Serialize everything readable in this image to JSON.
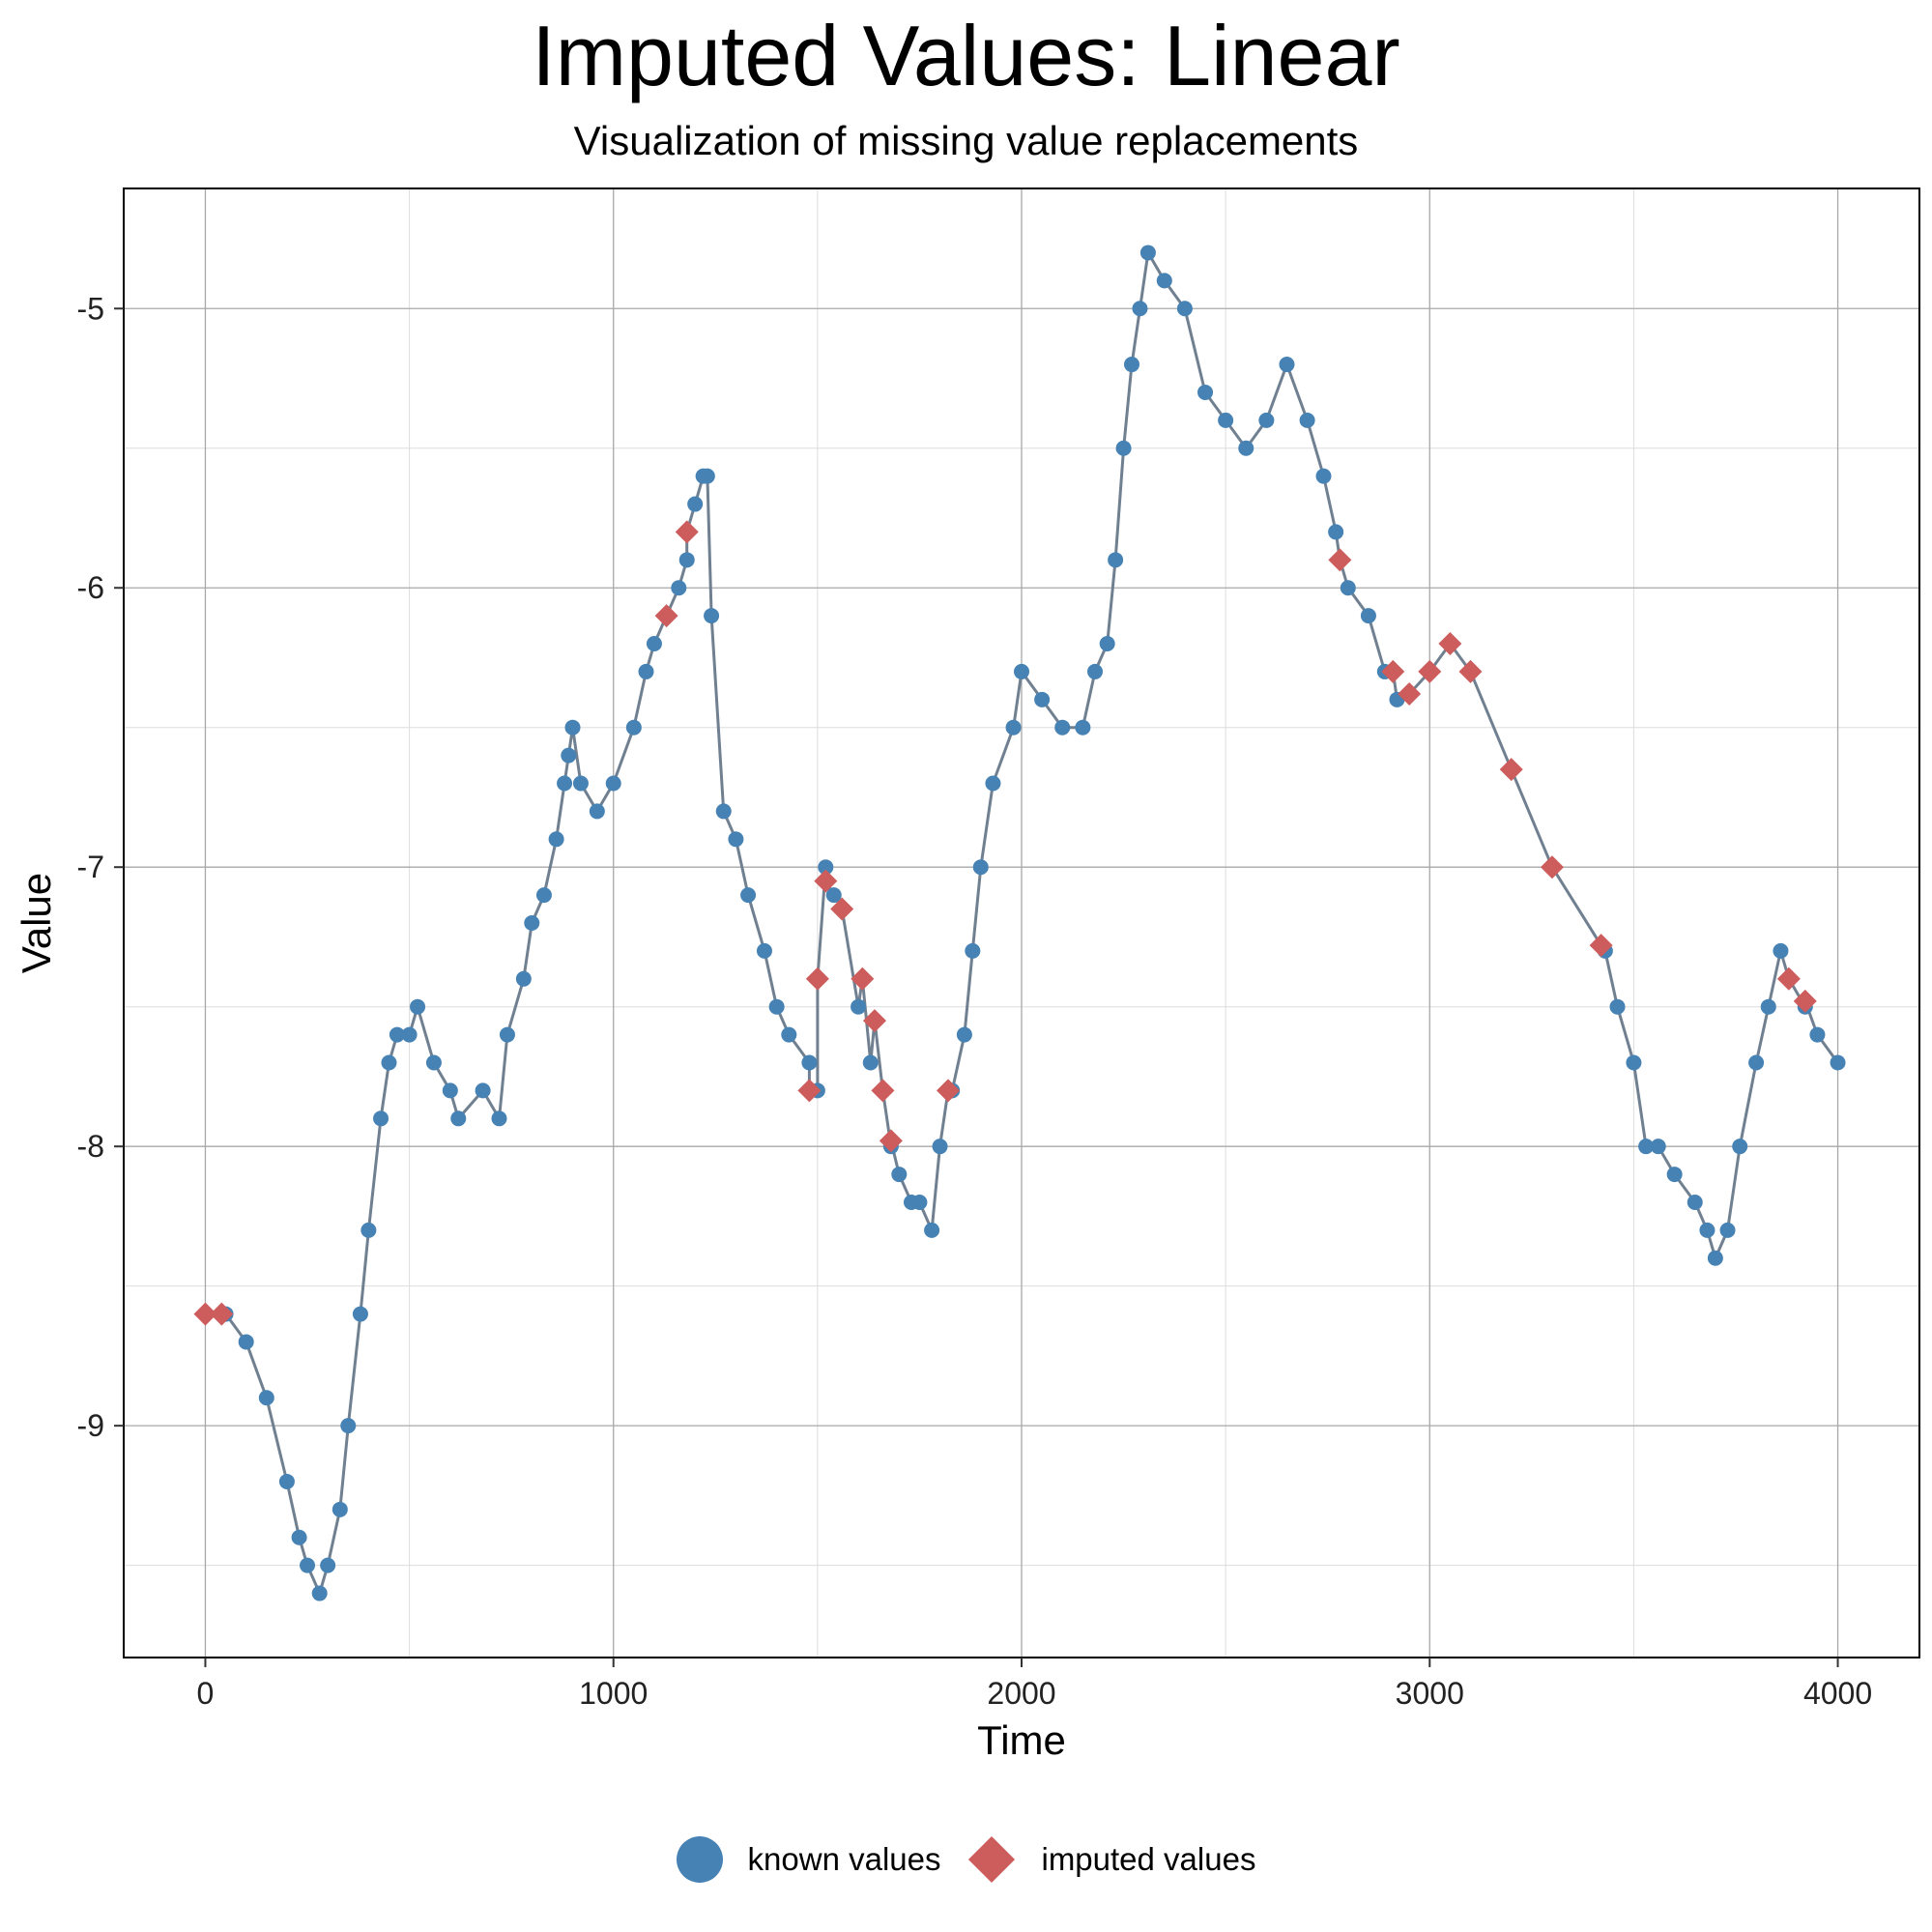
{
  "chart_data": {
    "type": "scatter",
    "title": "Imputed Values: Linear",
    "subtitle": "Visualization of missing value replacements",
    "xlabel": "Time",
    "ylabel": "Value",
    "xlim": [
      -200,
      4200
    ],
    "ylim": [
      -9.83,
      -4.57
    ],
    "x_ticks": [
      0,
      1000,
      2000,
      3000,
      4000
    ],
    "y_ticks": [
      -9,
      -8,
      -7,
      -6,
      -5
    ],
    "x_tick_labels": [
      "0",
      "1000",
      "2000",
      "3000",
      "4000"
    ],
    "y_tick_labels": [
      "-9",
      "-8",
      "-7",
      "-6",
      "-5"
    ],
    "grid": true,
    "legend_position": "bottom",
    "colors": {
      "known": "#4682b4",
      "imputed": "#cd5c5c",
      "line": "#708090"
    },
    "series": [
      {
        "name": "known values",
        "marker": "circle",
        "x": [
          50,
          100,
          150,
          200,
          230,
          250,
          280,
          300,
          330,
          350,
          380,
          400,
          430,
          450,
          470,
          500,
          520,
          560,
          600,
          620,
          680,
          720,
          740,
          780,
          800,
          830,
          860,
          880,
          890,
          900,
          920,
          960,
          1000,
          1050,
          1080,
          1100,
          1130,
          1160,
          1180,
          1200,
          1220,
          1230,
          1240,
          1270,
          1300,
          1330,
          1370,
          1400,
          1430,
          1480,
          1500,
          1520,
          1540,
          1600,
          1630,
          1680,
          1700,
          1730,
          1750,
          1780,
          1800,
          1830,
          1860,
          1880,
          1900,
          1930,
          1980,
          2000,
          2050,
          2100,
          2150,
          2180,
          2210,
          2230,
          2250,
          2270,
          2290,
          2310,
          2350,
          2400,
          2450,
          2500,
          2550,
          2600,
          2650,
          2700,
          2740,
          2770,
          2800,
          2850,
          2890,
          2920,
          3430,
          3460,
          3500,
          3530,
          3560,
          3600,
          3650,
          3680,
          3700,
          3730,
          3760,
          3800,
          3830,
          3860,
          3920,
          3950,
          4000
        ],
        "y": [
          -8.6,
          -8.7,
          -8.9,
          -9.2,
          -9.4,
          -9.5,
          -9.6,
          -9.5,
          -9.3,
          -9.0,
          -8.6,
          -8.3,
          -7.9,
          -7.7,
          -7.6,
          -7.6,
          -7.5,
          -7.7,
          -7.8,
          -7.9,
          -7.8,
          -7.9,
          -7.6,
          -7.4,
          -7.2,
          -7.1,
          -6.9,
          -6.7,
          -6.6,
          -6.5,
          -6.7,
          -6.8,
          -6.7,
          -6.5,
          -6.3,
          -6.2,
          -6.1,
          -6.0,
          -5.9,
          -5.7,
          -5.6,
          -5.6,
          -6.1,
          -6.8,
          -6.9,
          -7.1,
          -7.3,
          -7.5,
          -7.6,
          -7.7,
          -7.8,
          -7.0,
          -7.1,
          -7.5,
          -7.7,
          -8.0,
          -8.1,
          -8.2,
          -8.2,
          -8.3,
          -8.0,
          -7.8,
          -7.6,
          -7.3,
          -7.0,
          -6.7,
          -6.5,
          -6.3,
          -6.4,
          -6.5,
          -6.5,
          -6.3,
          -6.2,
          -5.9,
          -5.5,
          -5.2,
          -5.0,
          -4.8,
          -4.9,
          -5.0,
          -5.3,
          -5.4,
          -5.5,
          -5.4,
          -5.2,
          -5.4,
          -5.6,
          -5.8,
          -6.0,
          -6.1,
          -6.3,
          -6.4,
          -7.3,
          -7.5,
          -7.7,
          -8.0,
          -8.0,
          -8.1,
          -8.2,
          -8.3,
          -8.4,
          -8.3,
          -8.0,
          -7.7,
          -7.5,
          -7.3,
          -7.5,
          -7.6,
          -7.7
        ]
      },
      {
        "name": "imputed values",
        "marker": "diamond",
        "x": [
          0,
          40,
          1130,
          1180,
          1480,
          1500,
          1520,
          1560,
          1610,
          1640,
          1660,
          1680,
          1820,
          2780,
          2910,
          2950,
          3000,
          3050,
          3100,
          3200,
          3300,
          3420,
          3880,
          3920
        ],
        "y": [
          -8.6,
          -8.6,
          -6.1,
          -5.8,
          -7.8,
          -7.4,
          -7.05,
          -7.15,
          -7.4,
          -7.55,
          -7.8,
          -7.98,
          -7.8,
          -5.9,
          -6.3,
          -6.38,
          -6.3,
          -6.2,
          -6.3,
          -6.65,
          -7.0,
          -7.28,
          -7.4,
          -7.48
        ]
      }
    ]
  },
  "legend": {
    "known_label": "known values",
    "imputed_label": "imputed values"
  }
}
